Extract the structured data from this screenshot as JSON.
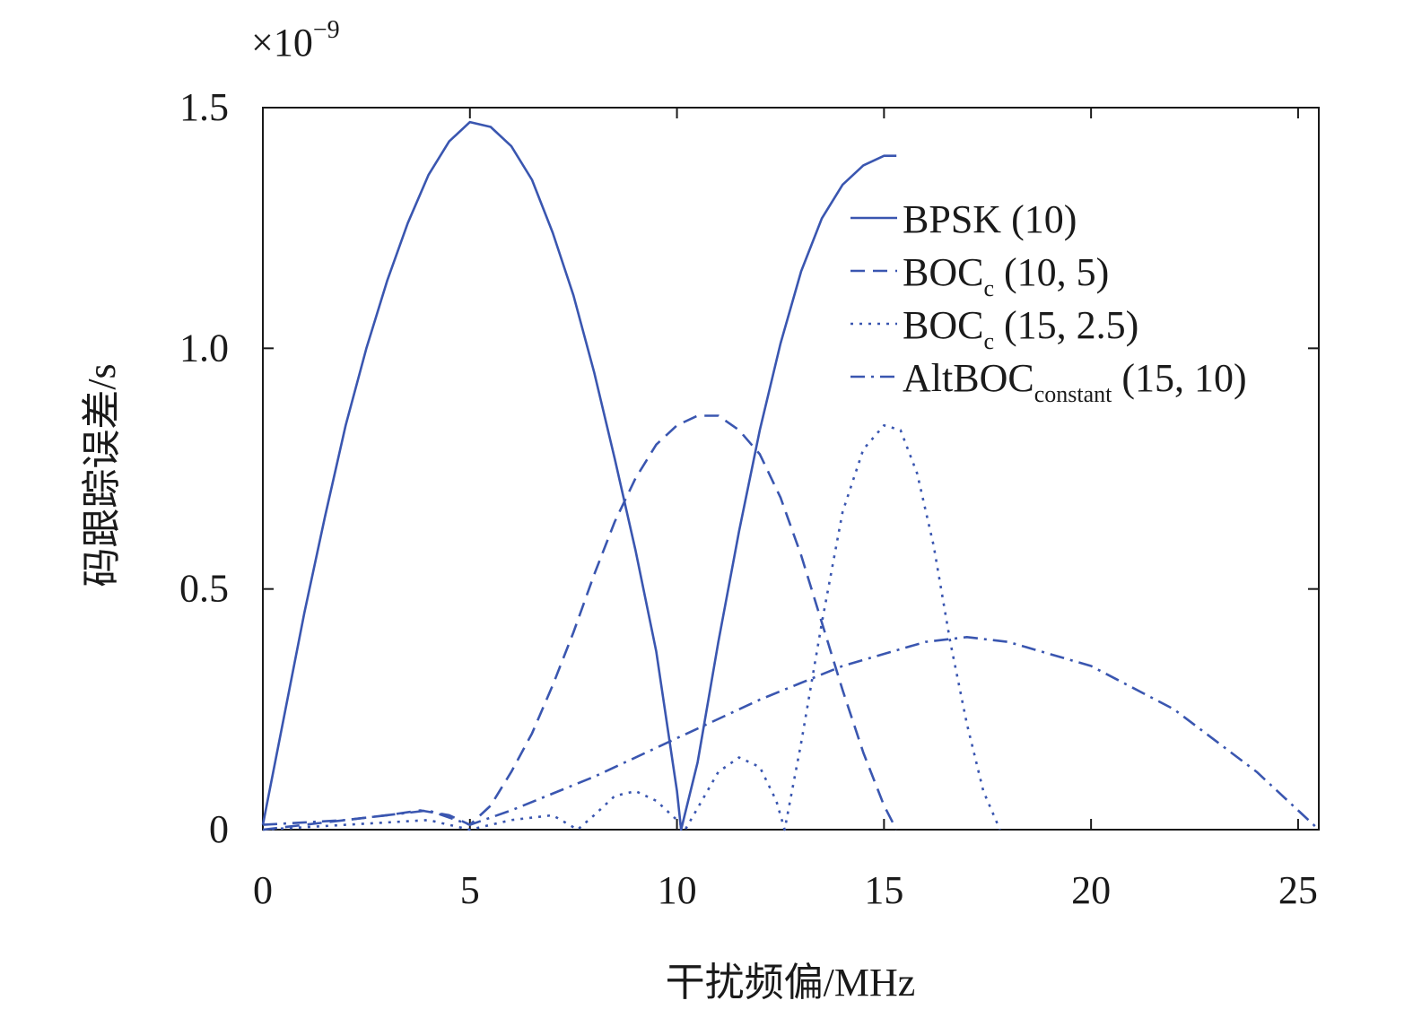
{
  "chart_data": {
    "type": "line",
    "xlabel": "干扰频偏/MHz",
    "ylabel": "码跟踪误差/s",
    "y_exponent_label": "×10",
    "y_exponent_power": "−9",
    "xlim": [
      0,
      25.5
    ],
    "ylim": [
      0,
      1.5
    ],
    "x_ticks": [
      0,
      5,
      10,
      15,
      20,
      25
    ],
    "x_tick_labels": [
      "0",
      "5",
      "10",
      "15",
      "20",
      "25"
    ],
    "y_ticks": [
      0,
      0.5,
      1.0,
      1.5
    ],
    "y_tick_labels": [
      "0",
      "0.5",
      "1.0",
      "1.5"
    ],
    "grid": false,
    "legend_position": "top-right",
    "series_color": "#3a56b0",
    "series": [
      {
        "name": "BPSK (10)",
        "legend_main": "BPSK (10)",
        "legend_sub": "",
        "legend_rest": "",
        "dash": "solid",
        "x": [
          0,
          0.5,
          1,
          1.5,
          2,
          2.5,
          3,
          3.5,
          4,
          4.5,
          5,
          5.5,
          6,
          6.5,
          7,
          7.5,
          8,
          8.5,
          9,
          9.5,
          10,
          10.1,
          10.5,
          11,
          11.5,
          12,
          12.5,
          13,
          13.5,
          14,
          14.5,
          15,
          15.3
        ],
        "y": [
          0.01,
          0.23,
          0.45,
          0.65,
          0.84,
          1.0,
          1.14,
          1.26,
          1.36,
          1.43,
          1.47,
          1.46,
          1.42,
          1.35,
          1.24,
          1.11,
          0.95,
          0.77,
          0.58,
          0.37,
          0.08,
          0.0,
          0.14,
          0.39,
          0.62,
          0.83,
          1.01,
          1.16,
          1.27,
          1.34,
          1.38,
          1.4,
          1.4
        ]
      },
      {
        "name": "BOCc (10, 5)",
        "legend_main": "BOC",
        "legend_sub": "c",
        "legend_rest": " (10, 5)",
        "dash": "dashed",
        "x": [
          0,
          1,
          2,
          3,
          3.8,
          4.5,
          5,
          5.5,
          6,
          6.5,
          7,
          7.5,
          8,
          8.5,
          9,
          9.5,
          10,
          10.5,
          11,
          11.5,
          12,
          12.5,
          13,
          13.5,
          14,
          14.5,
          15,
          15.3
        ],
        "y": [
          0.0,
          0.01,
          0.02,
          0.03,
          0.04,
          0.03,
          0.01,
          0.05,
          0.12,
          0.2,
          0.3,
          0.41,
          0.53,
          0.64,
          0.73,
          0.8,
          0.84,
          0.86,
          0.86,
          0.83,
          0.78,
          0.69,
          0.57,
          0.43,
          0.29,
          0.16,
          0.05,
          0.0
        ]
      },
      {
        "name": "BOCc (15, 2.5)",
        "legend_main": "BOC",
        "legend_sub": "c",
        "legend_rest": " (15, 2.5)",
        "dash": "dotted",
        "x": [
          0,
          2,
          4,
          5,
          6,
          7,
          7.6,
          8,
          8.5,
          9,
          9.5,
          10,
          10.2,
          10.6,
          11,
          11.5,
          12,
          12.4,
          12.6,
          13,
          13.5,
          14,
          14.5,
          15,
          15.4,
          15.8,
          16.2,
          16.6,
          17,
          17.4,
          17.8
        ],
        "y": [
          0.0,
          0.01,
          0.02,
          0.0,
          0.02,
          0.03,
          0.0,
          0.03,
          0.07,
          0.08,
          0.06,
          0.02,
          0.0,
          0.06,
          0.12,
          0.15,
          0.13,
          0.06,
          0.0,
          0.18,
          0.43,
          0.66,
          0.79,
          0.84,
          0.83,
          0.74,
          0.59,
          0.39,
          0.22,
          0.08,
          0.0
        ]
      },
      {
        "name": "AltBOCconstant (15, 10)",
        "legend_main": "AltBOC",
        "legend_sub": "constant",
        "legend_rest": " (15, 10)",
        "dash": "dashdot",
        "x": [
          0,
          2,
          4,
          5,
          6,
          8,
          10,
          12,
          14,
          16,
          17,
          18,
          20,
          22,
          24,
          25,
          25.5
        ],
        "y": [
          0.01,
          0.02,
          0.04,
          0.01,
          0.04,
          0.11,
          0.19,
          0.27,
          0.34,
          0.39,
          0.4,
          0.39,
          0.34,
          0.25,
          0.12,
          0.04,
          0.0
        ]
      }
    ]
  }
}
